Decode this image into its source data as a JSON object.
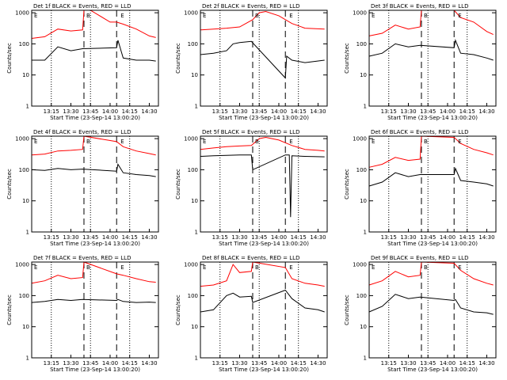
{
  "colors": {
    "events": "#000000",
    "lld": "#ff0000",
    "background": "#ffffff"
  },
  "chart_data": [
    {
      "type": "line",
      "title": "Det 1f BLACK = Events, RED = LLD",
      "xlabel": "Start Time (23-Sep-14 13:00:20)",
      "ylabel": "Counts/sec",
      "x_ticks": [
        "13:15",
        "13:30",
        "13:45",
        "14:00",
        "14:15",
        "14:30"
      ],
      "y_ticks": [
        "1",
        "10",
        "100",
        "1000"
      ],
      "ylim": [
        1,
        1200
      ],
      "scale": "log",
      "markers": [
        "E",
        "B",
        "E"
      ],
      "dotted": [
        "13:00",
        "13:15",
        "13:45",
        "14:15"
      ],
      "dashed": [
        "13:40",
        "14:05"
      ],
      "series": [
        {
          "name": "LLD",
          "x": [
            "13:00",
            "13:10",
            "13:20",
            "13:30",
            "13:39",
            "13:40",
            "13:45",
            "13:50",
            "14:00",
            "14:05",
            "14:10",
            "14:20",
            "14:30",
            "14:35"
          ],
          "values": [
            150,
            170,
            300,
            260,
            280,
            1200,
            1200,
            900,
            500,
            500,
            430,
            300,
            180,
            160
          ]
        },
        {
          "name": "Events",
          "x": [
            "13:00",
            "13:10",
            "13:20",
            "13:30",
            "13:39",
            "14:05",
            "14:06",
            "14:10",
            "14:20",
            "14:30",
            "14:35"
          ],
          "values": [
            30,
            30,
            80,
            60,
            70,
            75,
            130,
            35,
            30,
            30,
            28
          ]
        }
      ]
    },
    {
      "type": "line",
      "title": "Det 2f BLACK = Events, RED = LLD",
      "xlabel": "Start Time (23-Sep-14 13:00:20)",
      "ylabel": "Counts/sec",
      "x_ticks": [
        "13:15",
        "13:30",
        "13:45",
        "14:00",
        "14:15",
        "14:30"
      ],
      "y_ticks": [
        "1",
        "10",
        "100",
        "1000"
      ],
      "ylim": [
        1,
        1200
      ],
      "scale": "log",
      "markers": [
        "E",
        "B",
        "E"
      ],
      "dotted": [
        "13:00",
        "13:15",
        "13:45",
        "14:15"
      ],
      "dashed": [
        "13:40",
        "14:05"
      ],
      "series": [
        {
          "name": "LLD",
          "x": [
            "13:00",
            "13:10",
            "13:20",
            "13:30",
            "13:40",
            "13:45",
            "13:50",
            "14:00",
            "14:10",
            "14:20",
            "14:35"
          ],
          "values": [
            280,
            300,
            320,
            350,
            600,
            1000,
            1100,
            800,
            450,
            320,
            300
          ]
        },
        {
          "name": "Events",
          "x": [
            "13:00",
            "13:10",
            "13:20",
            "13:25",
            "13:30",
            "13:39",
            "14:05",
            "14:06",
            "14:10",
            "14:20",
            "14:35"
          ],
          "values": [
            45,
            50,
            60,
            100,
            110,
            120,
            8,
            40,
            30,
            25,
            30
          ]
        }
      ]
    },
    {
      "type": "line",
      "title": "Det 3f BLACK = Events, RED = LLD",
      "xlabel": "Start Time (23-Sep-14 13:00:20)",
      "ylabel": "Counts/sec",
      "x_ticks": [
        "13:15",
        "13:30",
        "13:45",
        "14:00",
        "14:15",
        "14:30"
      ],
      "y_ticks": [
        "1",
        "10",
        "100",
        "1000"
      ],
      "ylim": [
        1,
        1200
      ],
      "scale": "log",
      "markers": [
        "E",
        "B",
        "E"
      ],
      "dotted": [
        "13:00",
        "13:15",
        "13:45",
        "14:15"
      ],
      "dashed": [
        "13:40",
        "14:05"
      ],
      "series": [
        {
          "name": "LLD",
          "x": [
            "13:00",
            "13:10",
            "13:20",
            "13:30",
            "13:39",
            "13:40",
            "13:45",
            "14:05",
            "14:10",
            "14:20",
            "14:30",
            "14:35"
          ],
          "values": [
            180,
            220,
            400,
            300,
            350,
            1200,
            1200,
            1200,
            700,
            500,
            250,
            200
          ]
        },
        {
          "name": "Events",
          "x": [
            "13:00",
            "13:10",
            "13:20",
            "13:30",
            "13:39",
            "14:05",
            "14:06",
            "14:10",
            "14:20",
            "14:30",
            "14:35"
          ],
          "values": [
            40,
            50,
            100,
            80,
            90,
            75,
            130,
            50,
            45,
            35,
            30
          ]
        }
      ]
    },
    {
      "type": "line",
      "title": "Det 4f BLACK = Events, RED = LLD",
      "xlabel": "Start Time (23-Sep-14 13:00:20)",
      "ylabel": "Counts/sec",
      "x_ticks": [
        "13:15",
        "13:30",
        "13:45",
        "14:00",
        "14:15",
        "14:30"
      ],
      "y_ticks": [
        "1",
        "10",
        "100",
        "1000"
      ],
      "ylim": [
        1,
        1200
      ],
      "scale": "log",
      "markers": [
        "E",
        "B",
        "E"
      ],
      "dotted": [
        "13:00",
        "13:15",
        "13:45",
        "14:15"
      ],
      "dashed": [
        "13:40",
        "14:05"
      ],
      "series": [
        {
          "name": "LLD",
          "x": [
            "13:00",
            "13:10",
            "13:20",
            "13:30",
            "13:39",
            "13:40",
            "14:05",
            "14:10",
            "14:20",
            "14:30",
            "14:35"
          ],
          "values": [
            300,
            320,
            400,
            420,
            450,
            1200,
            800,
            550,
            400,
            330,
            300
          ]
        },
        {
          "name": "Events",
          "x": [
            "13:00",
            "13:10",
            "13:20",
            "13:30",
            "13:39",
            "14:05",
            "14:06",
            "14:10",
            "14:20",
            "14:30",
            "14:35"
          ],
          "values": [
            100,
            95,
            110,
            100,
            105,
            90,
            150,
            80,
            70,
            65,
            60
          ]
        }
      ]
    },
    {
      "type": "line",
      "title": "Det 5f BLACK = Events, RED = LLD",
      "xlabel": "Start Time (23-Sep-14 13:00:20)",
      "ylabel": "Counts/sec",
      "x_ticks": [
        "13:15",
        "13:30",
        "13:45",
        "14:00",
        "14:15",
        "14:30"
      ],
      "y_ticks": [
        "1",
        "10",
        "100",
        "1000"
      ],
      "ylim": [
        1,
        1200
      ],
      "scale": "log",
      "markers": [
        "E",
        "B",
        "E"
      ],
      "dotted": [
        "13:00",
        "13:15",
        "13:45",
        "14:15"
      ],
      "dashed": [
        "13:40",
        "14:05"
      ],
      "series": [
        {
          "name": "LLD",
          "x": [
            "13:00",
            "13:10",
            "13:20",
            "13:30",
            "13:39",
            "13:45",
            "13:50",
            "14:00",
            "14:10",
            "14:20",
            "14:30",
            "14:35"
          ],
          "values": [
            450,
            500,
            550,
            580,
            600,
            1000,
            1100,
            900,
            600,
            450,
            420,
            400
          ]
        },
        {
          "name": "Events",
          "x": [
            "13:00",
            "13:10",
            "13:20",
            "13:30",
            "13:39",
            "13:40",
            "14:05",
            "14:08",
            "14:09",
            "14:10",
            "14:20",
            "14:35"
          ],
          "values": [
            270,
            280,
            290,
            300,
            300,
            100,
            300,
            300,
            3,
            280,
            270,
            260
          ]
        }
      ]
    },
    {
      "type": "line",
      "title": "Det 6f BLACK = Events, RED = LLD",
      "xlabel": "Start Time (23-Sep-14 13:00:20)",
      "ylabel": "Counts/sec",
      "x_ticks": [
        "13:15",
        "13:30",
        "13:45",
        "14:00",
        "14:15",
        "14:30"
      ],
      "y_ticks": [
        "1",
        "10",
        "100",
        "1000"
      ],
      "ylim": [
        1,
        1200
      ],
      "scale": "log",
      "markers": [
        "E",
        "B",
        "E"
      ],
      "dotted": [
        "13:00",
        "13:15",
        "13:45",
        "14:15"
      ],
      "dashed": [
        "13:40",
        "14:05"
      ],
      "series": [
        {
          "name": "LLD",
          "x": [
            "13:00",
            "13:10",
            "13:20",
            "13:30",
            "13:39",
            "13:40",
            "14:05",
            "14:10",
            "14:20",
            "14:30",
            "14:35"
          ],
          "values": [
            120,
            150,
            250,
            200,
            220,
            1200,
            1100,
            700,
            450,
            350,
            300
          ]
        },
        {
          "name": "Events",
          "x": [
            "13:00",
            "13:10",
            "13:20",
            "13:30",
            "13:39",
            "14:05",
            "14:06",
            "14:10",
            "14:20",
            "14:30",
            "14:35"
          ],
          "values": [
            30,
            40,
            80,
            60,
            70,
            70,
            110,
            45,
            40,
            35,
            30
          ]
        }
      ]
    },
    {
      "type": "line",
      "title": "Det 7f BLACK = Events, RED = LLD",
      "xlabel": "Start Time (23-Sep-14 13:00:20)",
      "ylabel": "Counts/sec",
      "x_ticks": [
        "13:15",
        "13:30",
        "13:45",
        "14:00",
        "14:15",
        "14:30"
      ],
      "y_ticks": [
        "1",
        "10",
        "100",
        "1000"
      ],
      "ylim": [
        1,
        1200
      ],
      "scale": "log",
      "markers": [
        "E",
        "B",
        "E"
      ],
      "dotted": [
        "13:00",
        "13:15",
        "13:45",
        "14:15"
      ],
      "dashed": [
        "13:40",
        "14:05"
      ],
      "series": [
        {
          "name": "LLD",
          "x": [
            "13:00",
            "13:10",
            "13:20",
            "13:30",
            "13:39",
            "13:40",
            "14:05",
            "14:10",
            "14:20",
            "14:30",
            "14:35"
          ],
          "values": [
            250,
            300,
            450,
            350,
            380,
            1200,
            500,
            450,
            350,
            280,
            270
          ]
        },
        {
          "name": "Events",
          "x": [
            "13:00",
            "13:10",
            "13:20",
            "13:30",
            "13:39",
            "14:05",
            "14:06",
            "14:10",
            "14:20",
            "14:30",
            "14:35"
          ],
          "values": [
            60,
            65,
            75,
            70,
            75,
            70,
            75,
            65,
            60,
            62,
            60
          ]
        }
      ]
    },
    {
      "type": "line",
      "title": "Det 8f BLACK = Events, RED = LLD",
      "xlabel": "Start Time (23-Sep-14 13:00:20)",
      "ylabel": "Counts/sec",
      "x_ticks": [
        "13:15",
        "13:30",
        "13:45",
        "14:00",
        "14:15",
        "14:30"
      ],
      "y_ticks": [
        "1",
        "10",
        "100",
        "1000"
      ],
      "ylim": [
        1,
        1200
      ],
      "scale": "log",
      "markers": [
        "E",
        "B",
        "E"
      ],
      "dotted": [
        "13:00",
        "13:15",
        "13:45",
        "14:15"
      ],
      "dashed": [
        "13:40",
        "14:05"
      ],
      "series": [
        {
          "name": "LLD",
          "x": [
            "13:00",
            "13:10",
            "13:20",
            "13:25",
            "13:30",
            "13:39",
            "13:40",
            "14:05",
            "14:10",
            "14:20",
            "14:30",
            "14:35"
          ],
          "values": [
            200,
            220,
            300,
            1000,
            550,
            600,
            1200,
            800,
            350,
            250,
            220,
            200
          ]
        },
        {
          "name": "Events",
          "x": [
            "13:00",
            "13:10",
            "13:20",
            "13:25",
            "13:30",
            "13:39",
            "13:40",
            "14:05",
            "14:10",
            "14:20",
            "14:30",
            "14:35"
          ],
          "values": [
            30,
            35,
            100,
            120,
            90,
            95,
            60,
            150,
            80,
            40,
            35,
            30
          ]
        }
      ]
    },
    {
      "type": "line",
      "title": "Det 9f BLACK = Events, RED = LLD",
      "xlabel": "Start Time (23-Sep-14 13:00:20)",
      "ylabel": "Counts/sec",
      "x_ticks": [
        "13:15",
        "13:30",
        "13:45",
        "14:00",
        "14:15",
        "14:30"
      ],
      "y_ticks": [
        "1",
        "10",
        "100",
        "1000"
      ],
      "ylim": [
        1,
        1200
      ],
      "scale": "log",
      "markers": [
        "E",
        "B",
        "E"
      ],
      "dotted": [
        "13:00",
        "13:15",
        "13:45",
        "14:15"
      ],
      "dashed": [
        "13:40",
        "14:05"
      ],
      "series": [
        {
          "name": "LLD",
          "x": [
            "13:00",
            "13:10",
            "13:20",
            "13:30",
            "13:39",
            "13:40",
            "14:05",
            "14:10",
            "14:20",
            "14:30",
            "14:35"
          ],
          "values": [
            220,
            300,
            600,
            400,
            450,
            1200,
            1100,
            650,
            350,
            250,
            220
          ]
        },
        {
          "name": "Events",
          "x": [
            "13:00",
            "13:10",
            "13:20",
            "13:30",
            "13:39",
            "14:05",
            "14:06",
            "14:10",
            "14:20",
            "14:30",
            "14:35"
          ],
          "values": [
            30,
            45,
            110,
            80,
            90,
            70,
            75,
            40,
            30,
            28,
            25
          ]
        }
      ]
    }
  ]
}
